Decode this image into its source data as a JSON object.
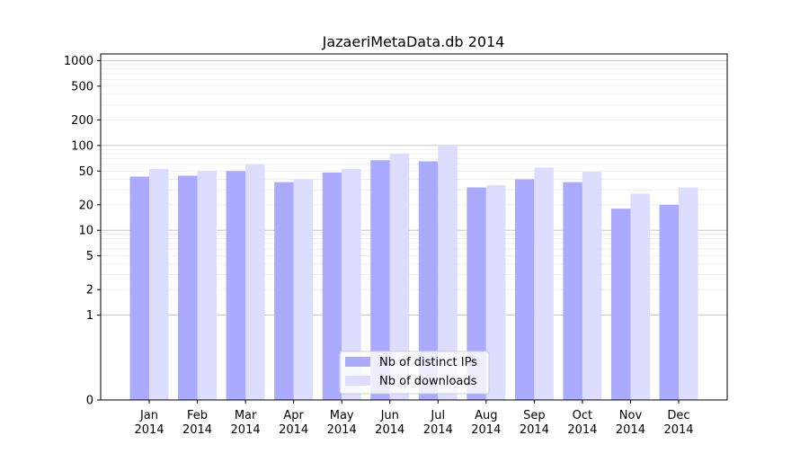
{
  "chart_data": {
    "type": "bar",
    "title": "JazaeriMetaData.db 2014",
    "xlabel": "",
    "ylabel": "",
    "yscale": "symlog",
    "ylim": [
      0,
      1200
    ],
    "yticks": [
      0,
      1,
      2,
      5,
      10,
      20,
      50,
      100,
      200,
      500,
      1000
    ],
    "ytick_labels": [
      "0",
      "1",
      "2",
      "5",
      "10",
      "20",
      "50",
      "100",
      "200",
      "500",
      "1000"
    ],
    "categories": [
      [
        "Jan",
        "2014"
      ],
      [
        "Feb",
        "2014"
      ],
      [
        "Mar",
        "2014"
      ],
      [
        "Apr",
        "2014"
      ],
      [
        "May",
        "2014"
      ],
      [
        "Jun",
        "2014"
      ],
      [
        "Jul",
        "2014"
      ],
      [
        "Aug",
        "2014"
      ],
      [
        "Sep",
        "2014"
      ],
      [
        "Oct",
        "2014"
      ],
      [
        "Nov",
        "2014"
      ],
      [
        "Dec",
        "2014"
      ]
    ],
    "series": [
      {
        "name": "Nb of distinct IPs",
        "color": "#aaaaff",
        "values": [
          43,
          44,
          50,
          37,
          48,
          67,
          65,
          32,
          40,
          37,
          18,
          20
        ]
      },
      {
        "name": "Nb of downloads",
        "color": "#ddddff",
        "values": [
          53,
          50,
          60,
          40,
          53,
          80,
          100,
          34,
          55,
          49,
          27,
          32
        ]
      }
    ],
    "grid": true,
    "legend_position": "bottom-center"
  }
}
